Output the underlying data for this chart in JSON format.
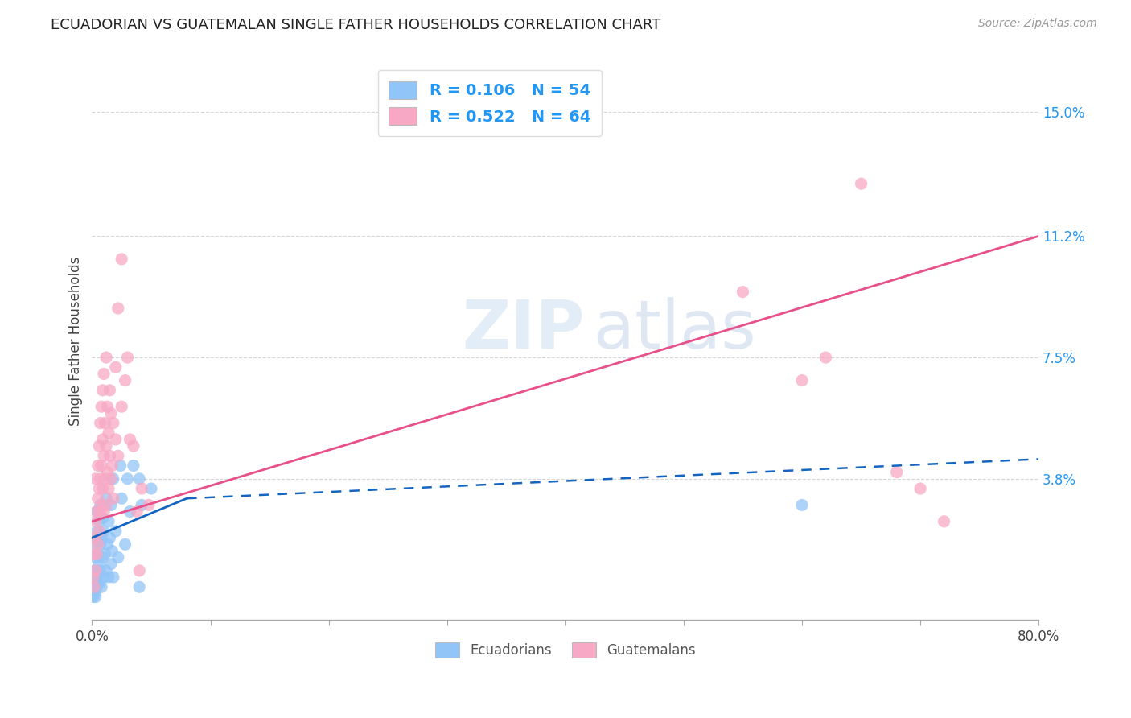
{
  "title": "ECUADORIAN VS GUATEMALAN SINGLE FATHER HOUSEHOLDS CORRELATION CHART",
  "source": "Source: ZipAtlas.com",
  "ylabel": "Single Father Households",
  "ytick_labels": [
    "3.8%",
    "7.5%",
    "11.2%",
    "15.0%"
  ],
  "ytick_values": [
    0.038,
    0.075,
    0.112,
    0.15
  ],
  "xlim": [
    0.0,
    0.8
  ],
  "ylim": [
    -0.005,
    0.165
  ],
  "watermark_line1": "ZIP",
  "watermark_line2": "atlas",
  "ecu_color": "#92C5F7",
  "guat_color": "#F7A8C4",
  "ecu_line_color": "#1565C0",
  "guat_line_color": "#E8508A",
  "background_color": "#FFFFFF",
  "grid_color": "#CCCCCC",
  "ecu_scatter": [
    [
      0.001,
      0.002
    ],
    [
      0.001,
      0.004
    ],
    [
      0.001,
      0.006
    ],
    [
      0.002,
      0.003
    ],
    [
      0.002,
      0.006
    ],
    [
      0.002,
      0.01
    ],
    [
      0.003,
      0.002
    ],
    [
      0.003,
      0.008
    ],
    [
      0.003,
      0.014
    ],
    [
      0.003,
      0.018
    ],
    [
      0.004,
      0.005
    ],
    [
      0.004,
      0.01
    ],
    [
      0.004,
      0.022
    ],
    [
      0.004,
      0.028
    ],
    [
      0.005,
      0.008
    ],
    [
      0.005,
      0.015
    ],
    [
      0.005,
      0.02
    ],
    [
      0.006,
      0.006
    ],
    [
      0.006,
      0.012
    ],
    [
      0.006,
      0.025
    ],
    [
      0.007,
      0.01
    ],
    [
      0.007,
      0.018
    ],
    [
      0.007,
      0.03
    ],
    [
      0.008,
      0.005
    ],
    [
      0.008,
      0.02
    ],
    [
      0.009,
      0.014
    ],
    [
      0.009,
      0.026
    ],
    [
      0.01,
      0.008
    ],
    [
      0.01,
      0.022
    ],
    [
      0.011,
      0.015
    ],
    [
      0.012,
      0.01
    ],
    [
      0.012,
      0.032
    ],
    [
      0.013,
      0.018
    ],
    [
      0.014,
      0.008
    ],
    [
      0.014,
      0.025
    ],
    [
      0.015,
      0.02
    ],
    [
      0.016,
      0.012
    ],
    [
      0.016,
      0.03
    ],
    [
      0.017,
      0.016
    ],
    [
      0.018,
      0.008
    ],
    [
      0.018,
      0.038
    ],
    [
      0.02,
      0.022
    ],
    [
      0.022,
      0.014
    ],
    [
      0.024,
      0.042
    ],
    [
      0.025,
      0.032
    ],
    [
      0.028,
      0.018
    ],
    [
      0.03,
      0.038
    ],
    [
      0.032,
      0.028
    ],
    [
      0.035,
      0.042
    ],
    [
      0.04,
      0.005
    ],
    [
      0.04,
      0.038
    ],
    [
      0.042,
      0.03
    ],
    [
      0.05,
      0.035
    ],
    [
      0.6,
      0.03
    ]
  ],
  "guat_scatter": [
    [
      0.001,
      0.008
    ],
    [
      0.001,
      0.015
    ],
    [
      0.002,
      0.005
    ],
    [
      0.002,
      0.02
    ],
    [
      0.003,
      0.01
    ],
    [
      0.003,
      0.025
    ],
    [
      0.003,
      0.038
    ],
    [
      0.004,
      0.015
    ],
    [
      0.004,
      0.028
    ],
    [
      0.005,
      0.018
    ],
    [
      0.005,
      0.032
    ],
    [
      0.005,
      0.042
    ],
    [
      0.006,
      0.022
    ],
    [
      0.006,
      0.035
    ],
    [
      0.006,
      0.048
    ],
    [
      0.007,
      0.028
    ],
    [
      0.007,
      0.038
    ],
    [
      0.007,
      0.055
    ],
    [
      0.008,
      0.03
    ],
    [
      0.008,
      0.042
    ],
    [
      0.008,
      0.06
    ],
    [
      0.009,
      0.035
    ],
    [
      0.009,
      0.05
    ],
    [
      0.009,
      0.065
    ],
    [
      0.01,
      0.028
    ],
    [
      0.01,
      0.045
    ],
    [
      0.01,
      0.07
    ],
    [
      0.011,
      0.038
    ],
    [
      0.011,
      0.055
    ],
    [
      0.012,
      0.03
    ],
    [
      0.012,
      0.048
    ],
    [
      0.012,
      0.075
    ],
    [
      0.013,
      0.04
    ],
    [
      0.013,
      0.06
    ],
    [
      0.014,
      0.035
    ],
    [
      0.014,
      0.052
    ],
    [
      0.015,
      0.045
    ],
    [
      0.015,
      0.065
    ],
    [
      0.016,
      0.038
    ],
    [
      0.016,
      0.058
    ],
    [
      0.017,
      0.042
    ],
    [
      0.018,
      0.032
    ],
    [
      0.018,
      0.055
    ],
    [
      0.02,
      0.05
    ],
    [
      0.02,
      0.072
    ],
    [
      0.022,
      0.045
    ],
    [
      0.022,
      0.09
    ],
    [
      0.025,
      0.06
    ],
    [
      0.025,
      0.105
    ],
    [
      0.028,
      0.068
    ],
    [
      0.03,
      0.075
    ],
    [
      0.032,
      0.05
    ],
    [
      0.035,
      0.048
    ],
    [
      0.038,
      0.028
    ],
    [
      0.04,
      0.01
    ],
    [
      0.042,
      0.035
    ],
    [
      0.048,
      0.03
    ],
    [
      0.55,
      0.095
    ],
    [
      0.6,
      0.068
    ],
    [
      0.62,
      0.075
    ],
    [
      0.65,
      0.128
    ],
    [
      0.68,
      0.04
    ],
    [
      0.7,
      0.035
    ],
    [
      0.72,
      0.025
    ]
  ],
  "ecu_line_solid": [
    [
      0.0,
      0.02
    ],
    [
      0.08,
      0.032
    ]
  ],
  "ecu_line_dashed": [
    [
      0.08,
      0.032
    ],
    [
      0.8,
      0.044
    ]
  ],
  "guat_line_solid": [
    [
      0.0,
      0.025
    ],
    [
      0.8,
      0.112
    ]
  ]
}
